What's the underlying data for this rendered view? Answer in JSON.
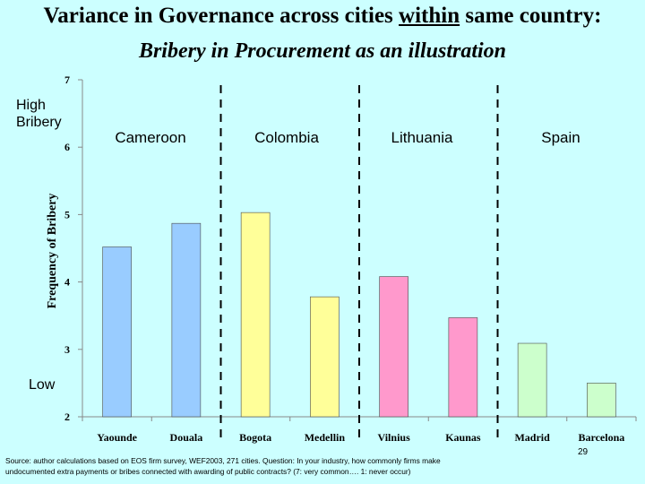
{
  "slide": {
    "title_part1": "Variance in Governance across cities ",
    "title_underlined": "within",
    "title_part2": " same country:",
    "subtitle": "Bribery in Procurement as an illustration",
    "high_label_line1": "High",
    "high_label_line2": "Bribery",
    "low_label": "Low",
    "page_number": "29",
    "source_line1": "Source:  author calculations based on EOS firm survey, WEF2003, 271 cities. Question: In your industry, how commonly firms make",
    "source_line2": "undocumented extra payments or bribes connected with awarding of public contracts? (7: very common…. 1: never occur)"
  },
  "countries": [
    "Cameroon",
    "Colombia",
    "Lithuania",
    "Spain"
  ],
  "colors": {
    "background": "#ccffff",
    "Cameroon": "#99ccff",
    "Colombia": "#ffff99",
    "Lithuania": "#ff99cc",
    "Spain": "#ccffcc"
  },
  "chart_data": {
    "type": "bar",
    "ylabel": "Frequency of Bribery",
    "ylim": [
      2,
      7
    ],
    "yticks": [
      2,
      3,
      4,
      5,
      6,
      7
    ],
    "categories": [
      "Yaounde",
      "Douala",
      "Bogota",
      "Medellin",
      "Vilnius",
      "Kaunas",
      "Madrid",
      "Barcelona"
    ],
    "groups": [
      "Cameroon",
      "Cameroon",
      "Colombia",
      "Colombia",
      "Lithuania",
      "Lithuania",
      "Spain",
      "Spain"
    ],
    "values": [
      4.52,
      4.87,
      5.03,
      3.78,
      4.08,
      3.47,
      3.09,
      2.5
    ],
    "grid": false,
    "legend": "none"
  }
}
